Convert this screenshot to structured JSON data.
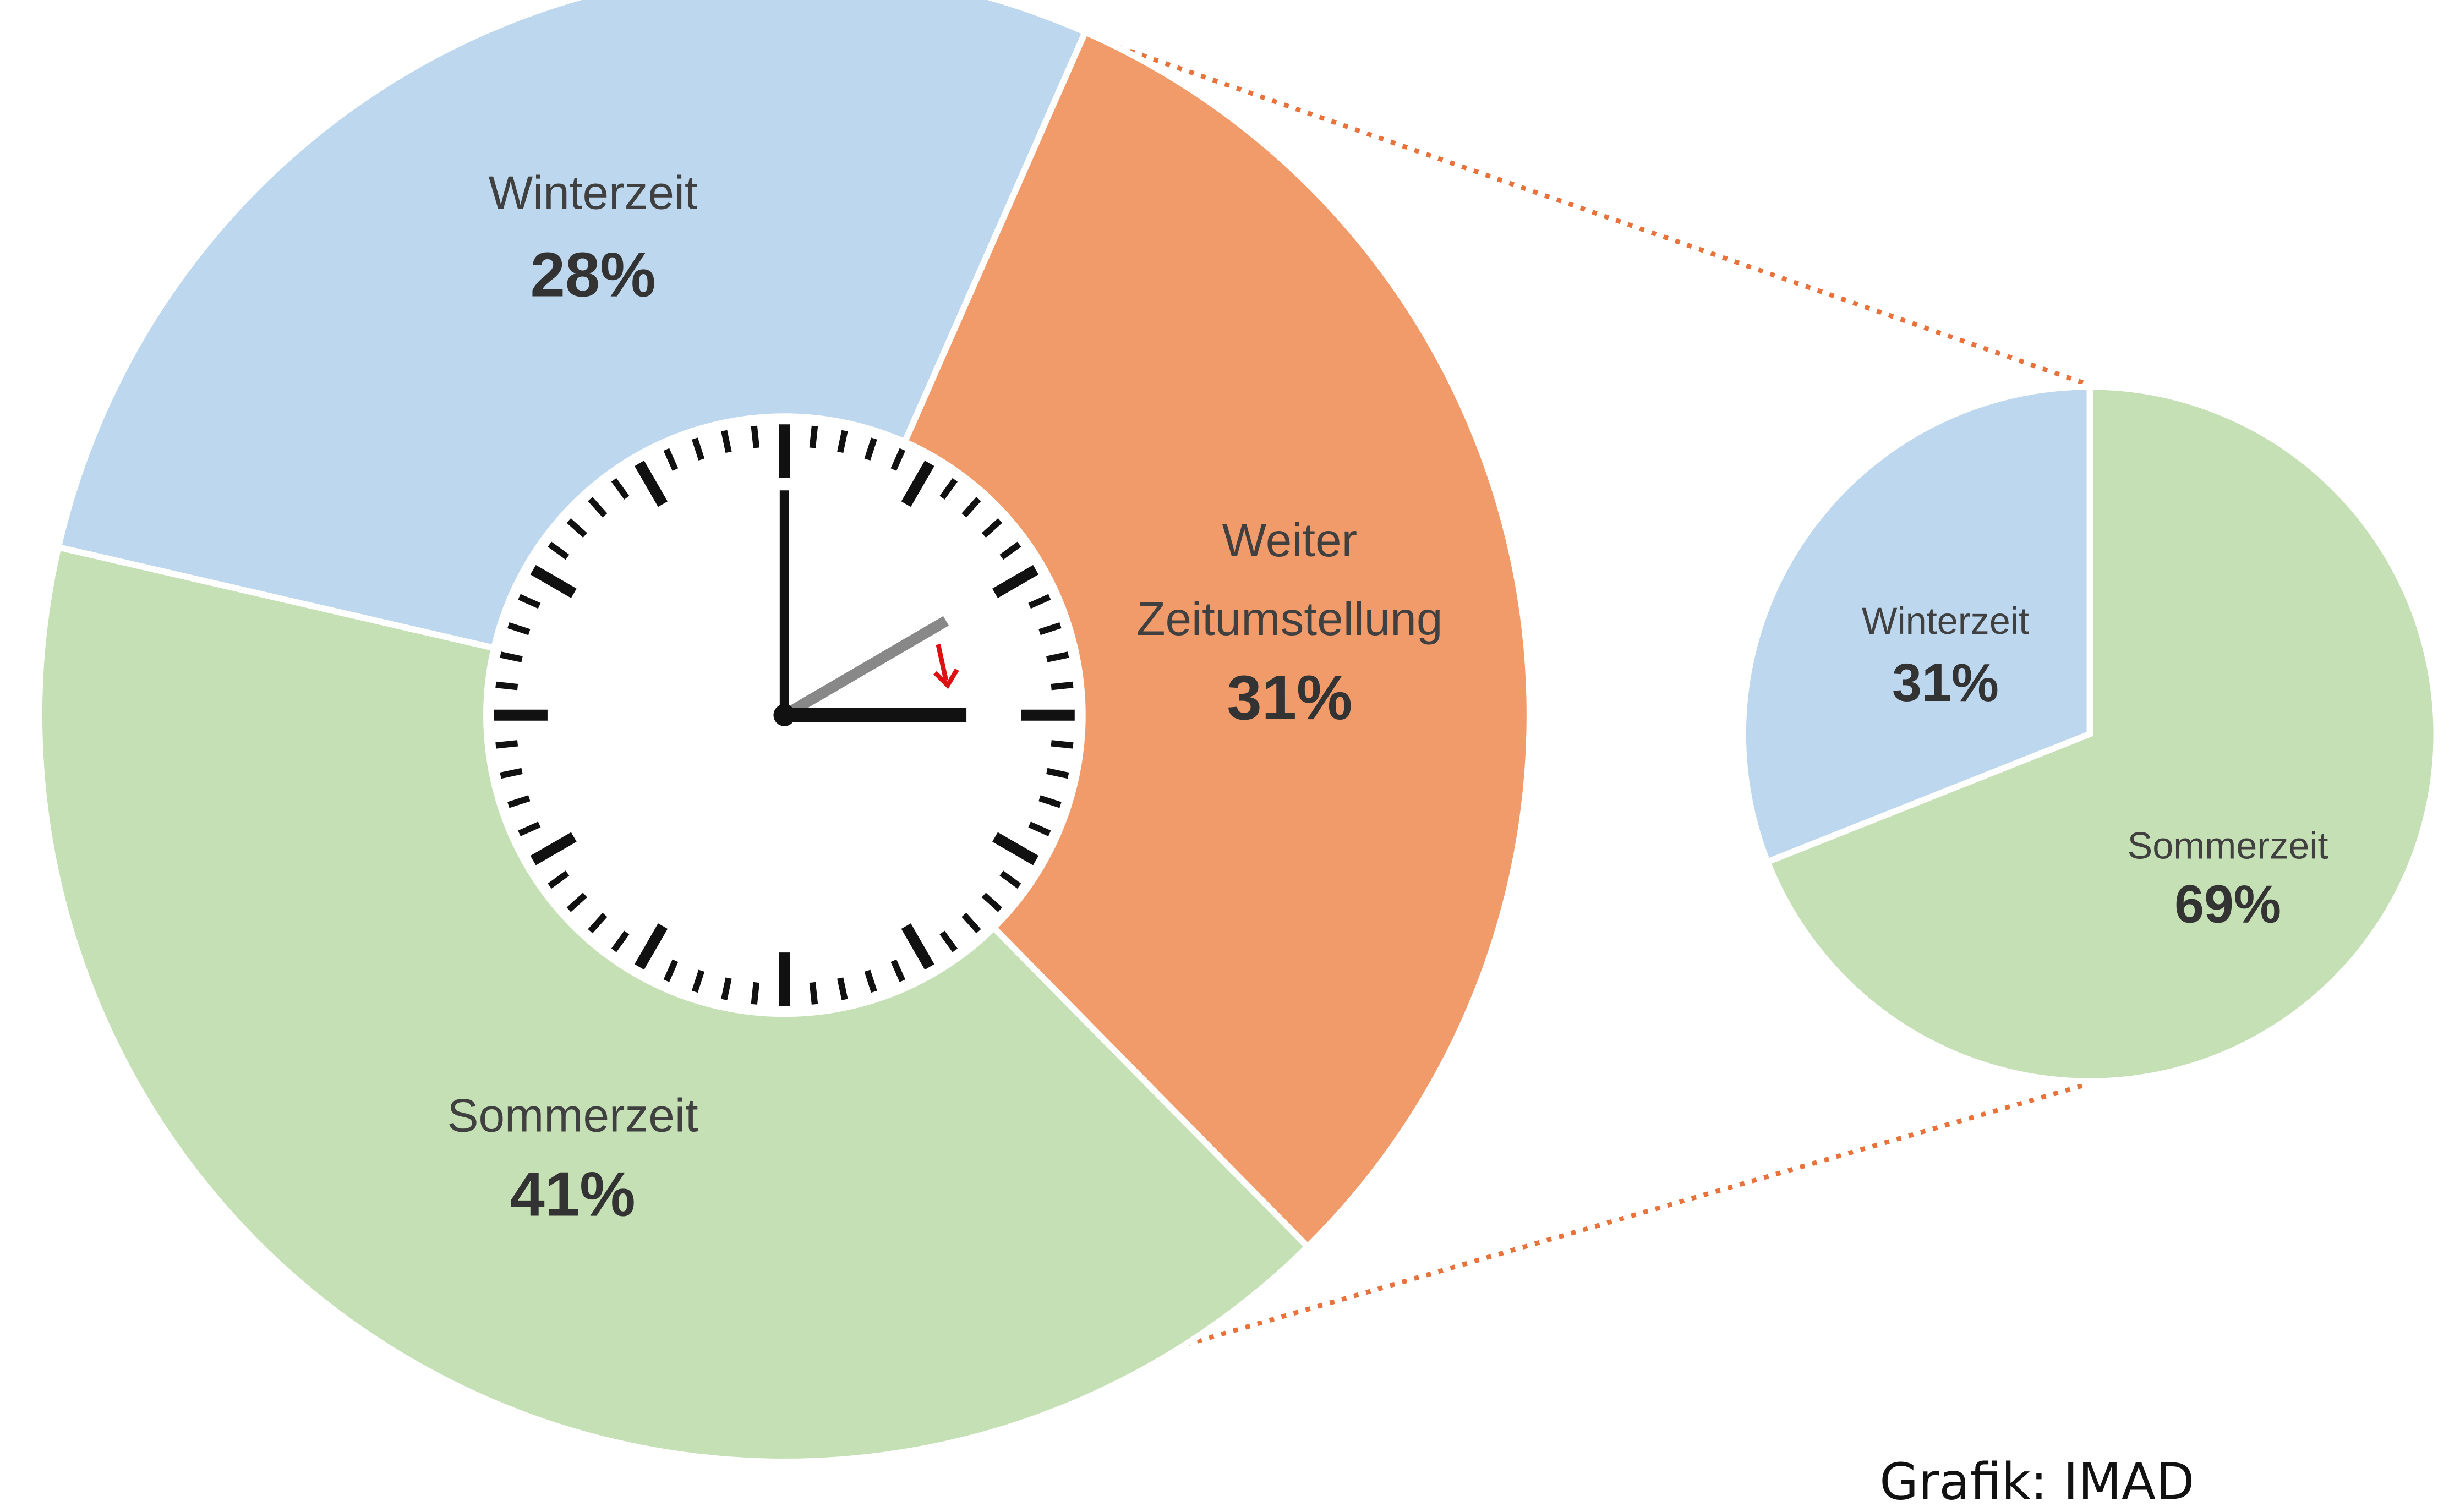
{
  "chart_data": [
    {
      "type": "pie",
      "categories": [
        "Weiter Zeitumstellung",
        "Sommerzeit",
        "Winterzeit"
      ],
      "values": [
        31,
        41,
        28
      ],
      "value_labels": [
        "31%",
        "41%",
        "28%"
      ],
      "colors": [
        "#f29b6a",
        "#c6e0b5",
        "#bdd7ee"
      ]
    },
    {
      "type": "pie",
      "categories": [
        "Sommerzeit",
        "Winterzeit"
      ],
      "values": [
        69,
        31
      ],
      "value_labels": [
        "69%",
        "31%"
      ],
      "colors": [
        "#c6e0b5",
        "#bdd7ee"
      ]
    }
  ],
  "source": "Grafik: IMAD"
}
